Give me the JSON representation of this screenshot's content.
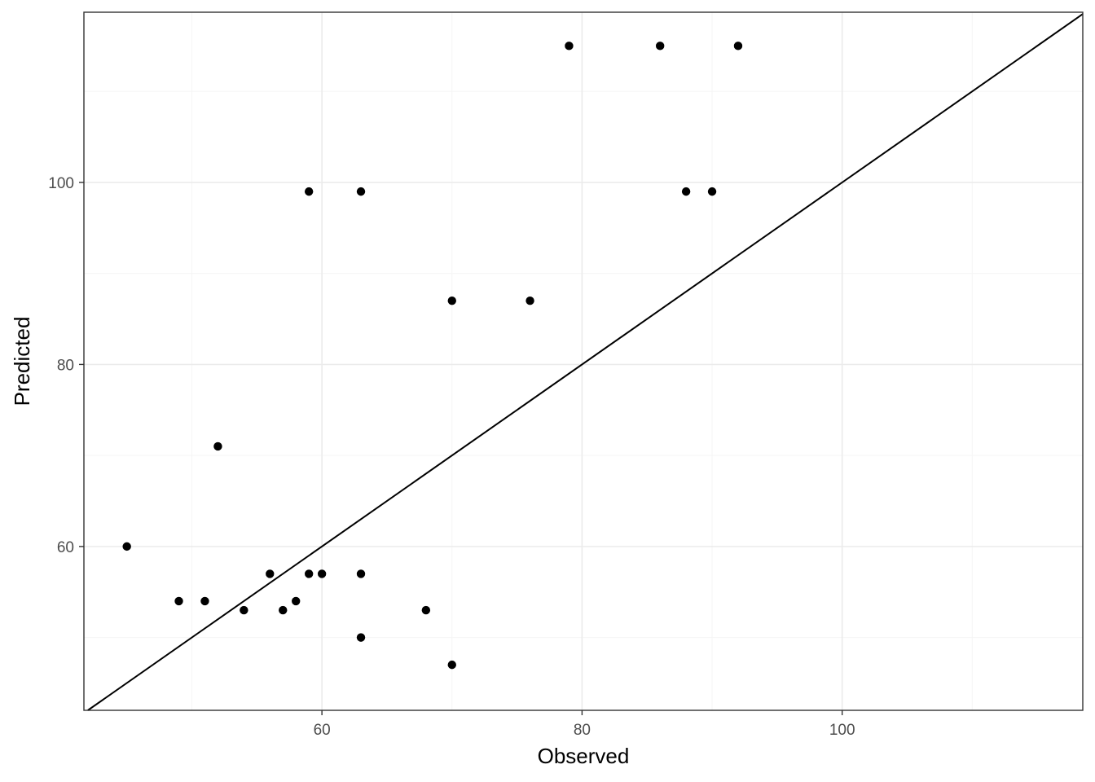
{
  "chart_data": {
    "type": "scatter",
    "title": "",
    "xlabel": "Observed",
    "ylabel": "Predicted",
    "xlim": [
      41.7,
      118.5
    ],
    "ylim": [
      42.0,
      118.7
    ],
    "x_ticks": [
      60,
      80,
      100
    ],
    "y_ticks": [
      60,
      80,
      100
    ],
    "x_minor_ticks": [
      50,
      70,
      90,
      110
    ],
    "y_minor_ticks": [
      50,
      70,
      90,
      110
    ],
    "grid": true,
    "reference_line": {
      "type": "identity",
      "slope": 1,
      "intercept": 0
    },
    "points": [
      {
        "x": 45,
        "y": 60
      },
      {
        "x": 49,
        "y": 54
      },
      {
        "x": 51,
        "y": 54
      },
      {
        "x": 52,
        "y": 71
      },
      {
        "x": 54,
        "y": 53
      },
      {
        "x": 56,
        "y": 57
      },
      {
        "x": 57,
        "y": 53
      },
      {
        "x": 58,
        "y": 54
      },
      {
        "x": 59,
        "y": 57
      },
      {
        "x": 60,
        "y": 57
      },
      {
        "x": 63,
        "y": 57
      },
      {
        "x": 63,
        "y": 50
      },
      {
        "x": 68,
        "y": 53
      },
      {
        "x": 70,
        "y": 47
      },
      {
        "x": 59,
        "y": 99
      },
      {
        "x": 63,
        "y": 99
      },
      {
        "x": 70,
        "y": 87
      },
      {
        "x": 76,
        "y": 87
      },
      {
        "x": 79,
        "y": 115
      },
      {
        "x": 86,
        "y": 115
      },
      {
        "x": 92,
        "y": 115
      },
      {
        "x": 88,
        "y": 99
      },
      {
        "x": 90,
        "y": 99
      }
    ],
    "colors": {
      "point": "#000000",
      "line": "#000000",
      "grid_major": "#ebebeb",
      "grid_minor": "#f5f5f5",
      "panel_border": "#333333",
      "tick_label": "#4d4d4d"
    }
  }
}
